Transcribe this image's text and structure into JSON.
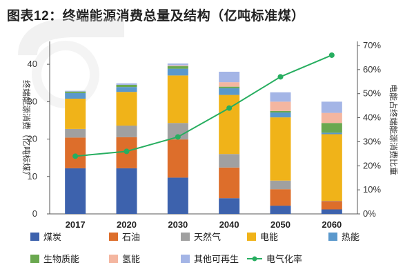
{
  "title": "图表12：终端能源消费总量及结构（亿吨标准煤）",
  "chart_data": {
    "type": "bar",
    "stacked": true,
    "categories": [
      "2017",
      "2020",
      "2030",
      "2040",
      "2050",
      "2060"
    ],
    "ylabel_left": "终端能源消费（亿吨标煤）",
    "ylabel_right": "电能占终端能源消费比重",
    "ylim_left": [
      0,
      45
    ],
    "yticks_left": [
      0,
      10,
      20,
      30,
      40
    ],
    "ylim_right": [
      0,
      0.7
    ],
    "yticks_right": [
      "0%",
      "10%",
      "20%",
      "30%",
      "40%",
      "50%",
      "60%",
      "70%"
    ],
    "series": [
      {
        "name": "煤炭",
        "color": "#3d62ad",
        "values": [
          12.2,
          12.2,
          9.7,
          4.2,
          2.2,
          1.2
        ]
      },
      {
        "name": "石油",
        "color": "#dd6e2b",
        "values": [
          8.2,
          8.3,
          10.2,
          8.2,
          4.4,
          2.2
        ]
      },
      {
        "name": "天然气",
        "color": "#a0a0a0",
        "values": [
          2.3,
          3.1,
          4.4,
          3.6,
          2.3,
          0.1
        ]
      },
      {
        "name": "电能",
        "color": "#f0b319",
        "values": [
          8.1,
          9.0,
          12.7,
          15.8,
          16.9,
          17.8
        ]
      },
      {
        "name": "热能",
        "color": "#5a98cc",
        "values": [
          1.5,
          1.3,
          1.8,
          1.8,
          1.3,
          0.4
        ]
      },
      {
        "name": "生物质能",
        "color": "#6aa84f",
        "values": [
          0.4,
          0.6,
          0.7,
          0.4,
          0.4,
          2.6
        ]
      },
      {
        "name": "氢能",
        "color": "#f4b6a0",
        "values": [
          0.0,
          0.0,
          0.2,
          1.2,
          2.5,
          2.7
        ]
      },
      {
        "name": "其他可再生",
        "color": "#a4b5e6",
        "values": [
          0.2,
          0.4,
          0.5,
          2.8,
          2.5,
          3.0
        ]
      }
    ],
    "line": {
      "name": "电气化率",
      "color": "#27ae60",
      "axis": "right",
      "values": [
        0.24,
        0.26,
        0.32,
        0.44,
        0.57,
        0.66
      ]
    },
    "grid": false,
    "legend_position": "bottom"
  }
}
